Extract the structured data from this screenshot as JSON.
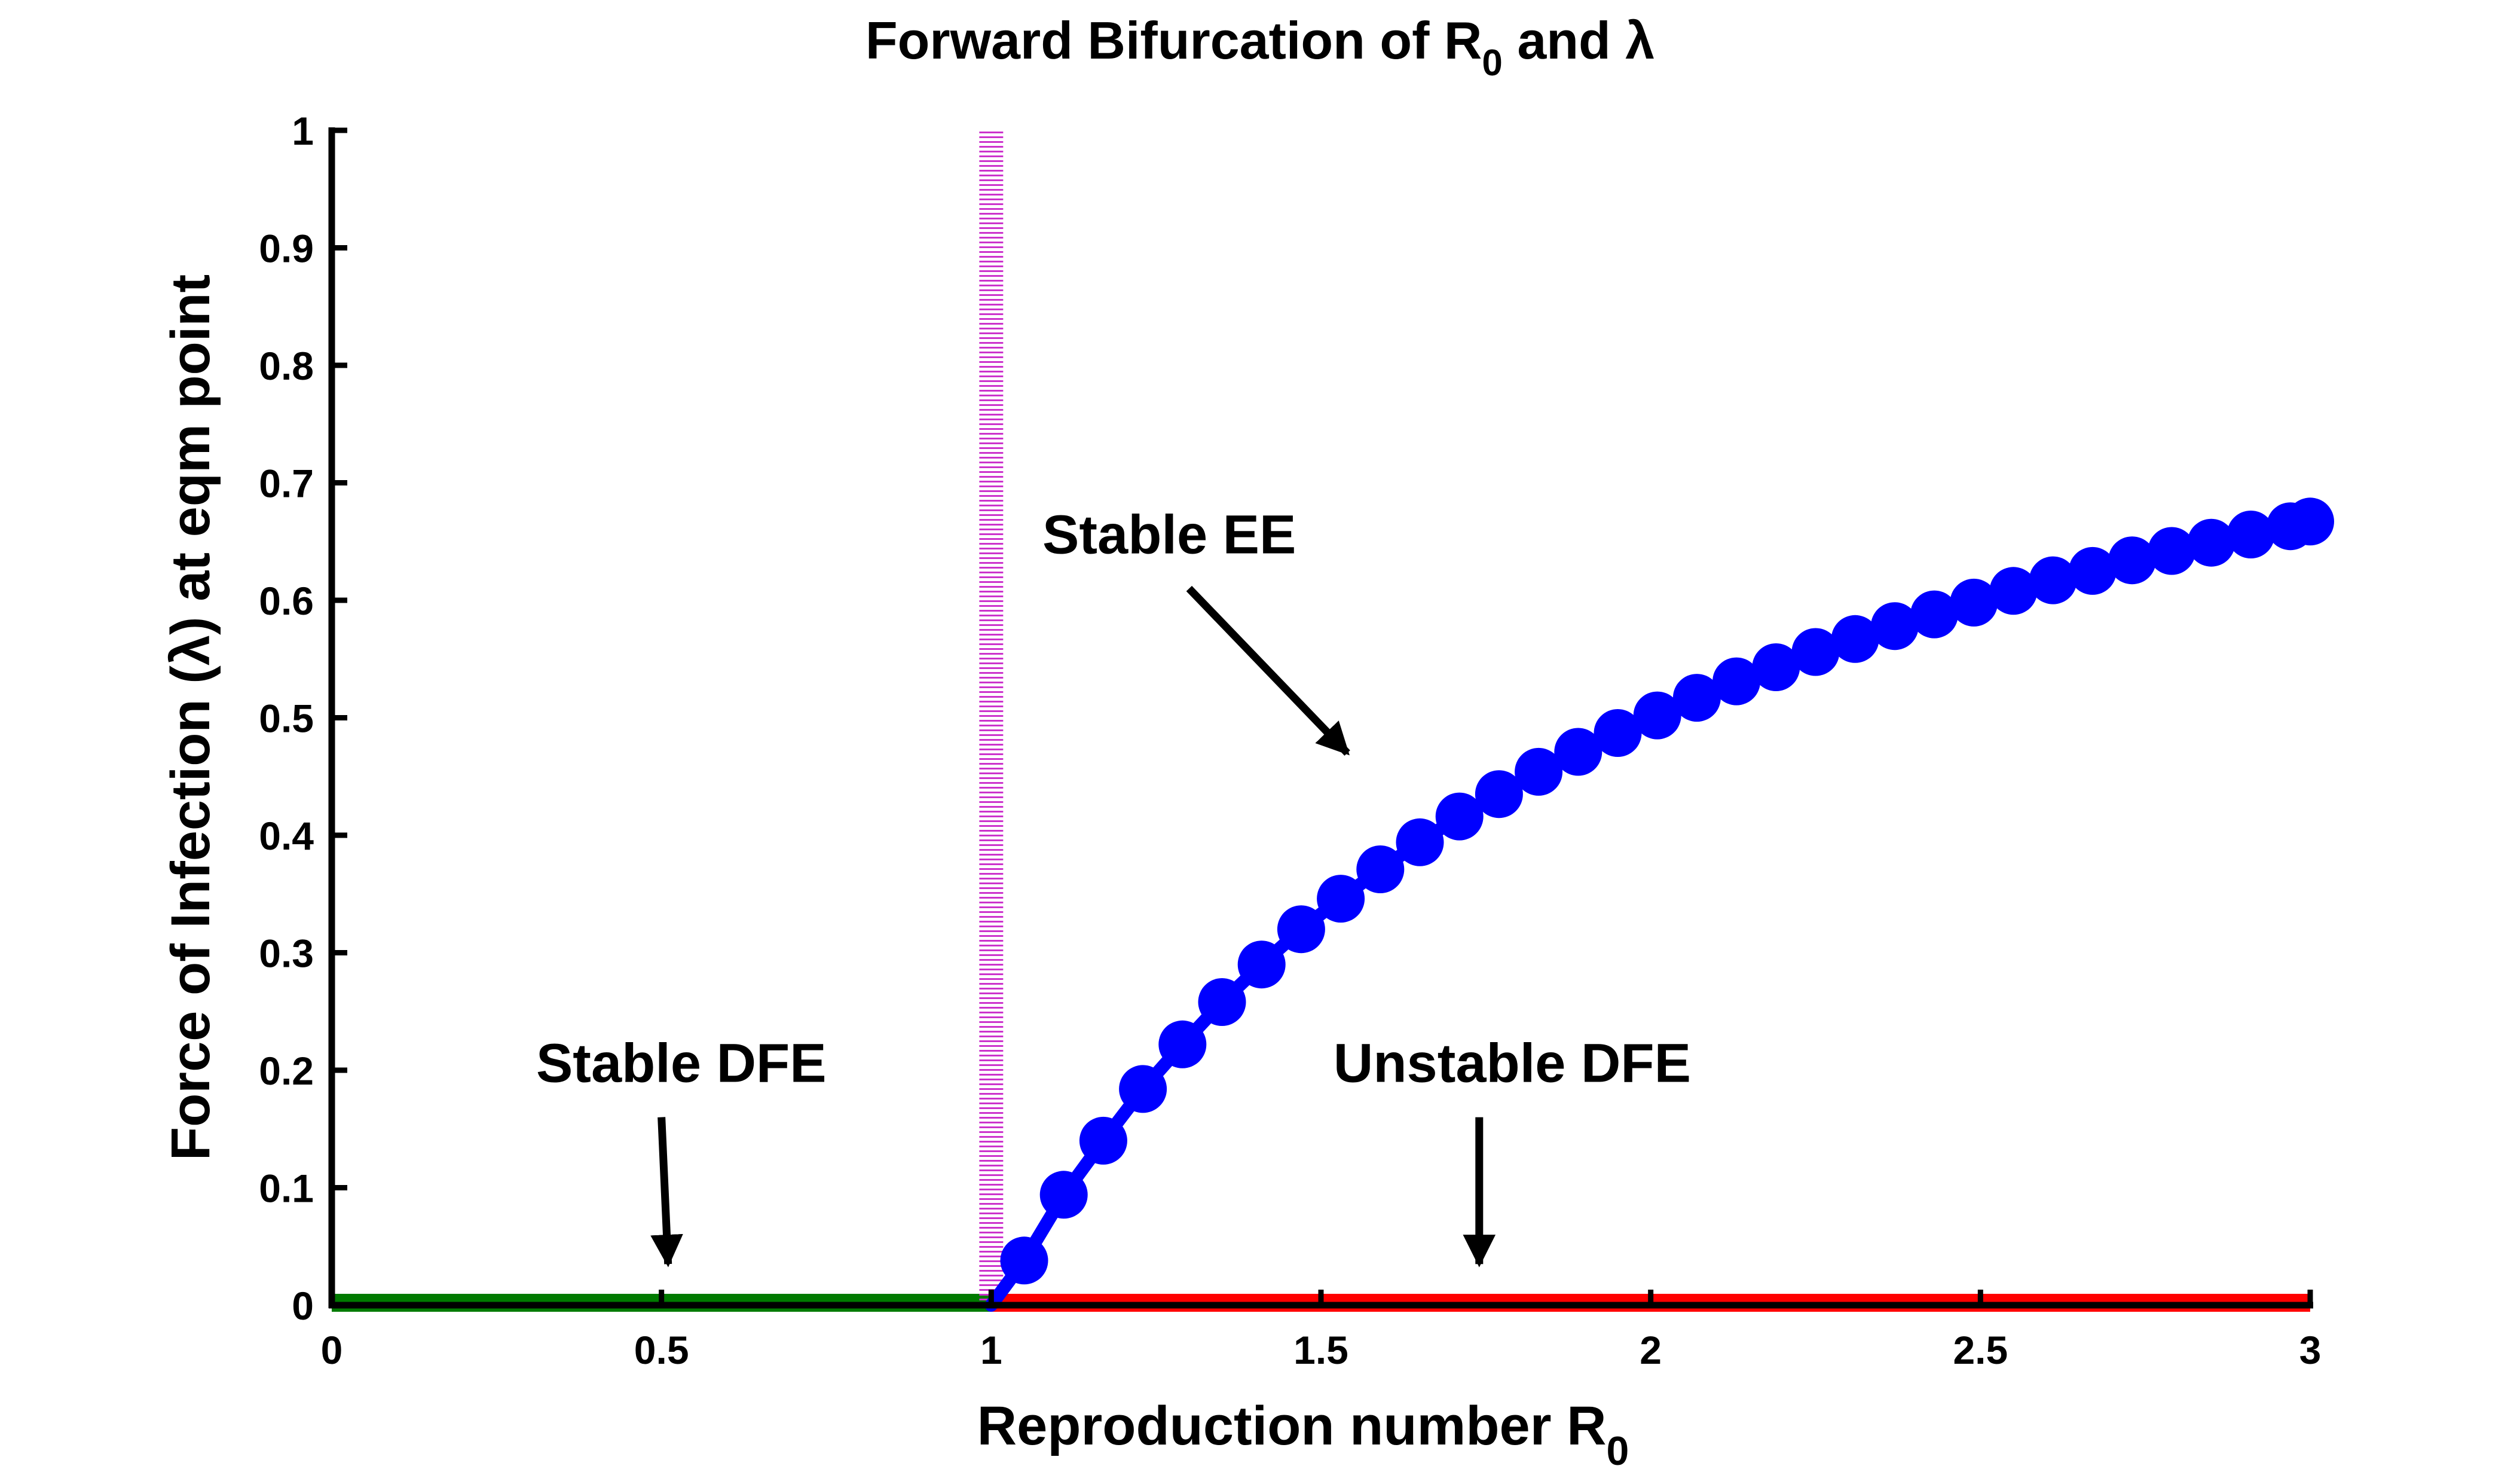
{
  "chart_data": {
    "type": "line",
    "title": "Forward Bifurcation of R",
    "title_sub": "0",
    "title_tail": " and λ",
    "xlabel": "Reproduction number R",
    "xlabel_sub": "0",
    "ylabel": "Force of Infection (λ) at eqm point",
    "xlim": [
      0,
      3
    ],
    "ylim": [
      0,
      1
    ],
    "x_ticks": [
      0,
      0.5,
      1,
      1.5,
      2,
      2.5,
      3
    ],
    "x_tick_labels": [
      "0",
      "0.5",
      "1",
      "1.5",
      "2",
      "2.5",
      "3"
    ],
    "y_ticks": [
      0,
      0.1,
      0.2,
      0.3,
      0.4,
      0.5,
      0.6,
      0.7,
      0.8,
      0.9,
      1
    ],
    "y_tick_labels": [
      "0",
      "0.1",
      "0.2",
      "0.3",
      "0.4",
      "0.5",
      "0.6",
      "0.7",
      "0.8",
      "0.9",
      "1"
    ],
    "grid": false,
    "legend": "none",
    "series": [
      {
        "role": "stable-dfe",
        "color": "#007a00",
        "style": "solid",
        "x": [
          0,
          1
        ],
        "y": [
          0,
          0
        ]
      },
      {
        "role": "unstable-dfe",
        "color": "#ff0000",
        "style": "solid",
        "x": [
          1,
          3
        ],
        "y": [
          0,
          0
        ]
      },
      {
        "role": "threshold",
        "color": "#cc33cc",
        "style": "dotted",
        "x": [
          1,
          1
        ],
        "y": [
          0,
          1
        ]
      },
      {
        "role": "endemic-equilibrium",
        "color": "#0000ff",
        "style": "solid-markers",
        "marker": "circle",
        "x": [
          1,
          1.05,
          1.11,
          1.17,
          1.23,
          1.29,
          1.35,
          1.41,
          1.47,
          1.53,
          1.59,
          1.65,
          1.71,
          1.77,
          1.83,
          1.89,
          1.95,
          2.01,
          2.07,
          2.13,
          2.19,
          2.25,
          2.31,
          2.37,
          2.43,
          2.49,
          2.55,
          2.61,
          2.67,
          2.73,
          2.79,
          2.85,
          2.91,
          2.97,
          3.0
        ],
        "y": [
          0,
          0.038,
          0.094,
          0.14,
          0.184,
          0.222,
          0.258,
          0.29,
          0.32,
          0.346,
          0.371,
          0.394,
          0.416,
          0.435,
          0.454,
          0.471,
          0.487,
          0.502,
          0.517,
          0.531,
          0.543,
          0.556,
          0.567,
          0.578,
          0.588,
          0.598,
          0.608,
          0.617,
          0.625,
          0.634,
          0.642,
          0.649,
          0.656,
          0.663,
          0.667
        ]
      }
    ],
    "annotations": [
      {
        "text": "Stable DFE",
        "x": 0.53,
        "y": 0.19,
        "arrow_from": [
          0.5,
          0.16
        ],
        "arrow_to": [
          0.51,
          0.035
        ]
      },
      {
        "text": "Unstable DFE",
        "x": 1.79,
        "y": 0.19,
        "arrow_from": [
          1.74,
          0.16
        ],
        "arrow_to": [
          1.74,
          0.035
        ]
      },
      {
        "text": "Stable EE",
        "x": 1.27,
        "y": 0.64,
        "arrow_from": [
          1.3,
          0.61
        ],
        "arrow_to": [
          1.54,
          0.47
        ]
      }
    ]
  }
}
